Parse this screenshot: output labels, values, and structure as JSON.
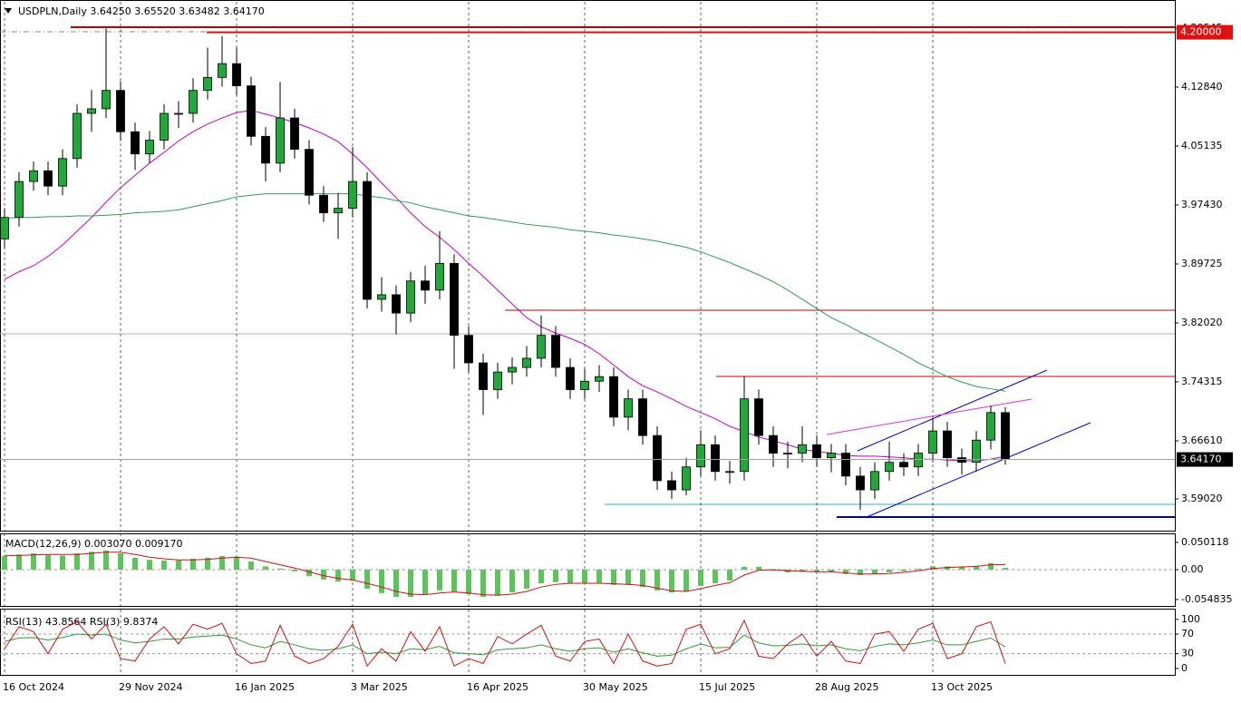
{
  "chart_data": [
    {
      "type": "candlestick",
      "title": "USDPLN,Daily  3.64250 3.65520 3.63482 3.64170",
      "categories": [
        "16 Oct 2024",
        null,
        null,
        null,
        null,
        null,
        null,
        null,
        "29 Nov 2024",
        null,
        null,
        null,
        null,
        null,
        null,
        null,
        "16 Jan 2025",
        null,
        null,
        null,
        null,
        null,
        null,
        null,
        "3 Mar 2025",
        null,
        null,
        null,
        null,
        null,
        null,
        null,
        "16 Apr 2025",
        null,
        null,
        null,
        null,
        null,
        null,
        null,
        "30 May 2025",
        null,
        null,
        null,
        null,
        null,
        null,
        null,
        "15 Jul 2025",
        null,
        null,
        null,
        null,
        null,
        null,
        null,
        "28 Aug 2025",
        null,
        null,
        null,
        null,
        null,
        null,
        null,
        "13 Oct 2025",
        null,
        null,
        null,
        null,
        null
      ],
      "open": [
        3.93,
        3.958,
        4.005,
        4.019,
        3.999,
        4.035,
        4.094,
        4.1,
        4.124,
        4.07,
        4.041,
        4.059,
        4.094,
        4.094,
        4.124,
        4.141,
        4.159,
        4.13,
        4.064,
        4.029,
        4.088,
        4.047,
        3.987,
        3.964,
        3.97,
        4.005,
        3.851,
        3.857,
        3.833,
        3.875,
        3.863,
        3.898,
        3.804,
        3.768,
        3.733,
        3.756,
        3.762,
        3.774,
        3.804,
        3.762,
        3.733,
        3.744,
        3.75,
        3.697,
        3.721,
        3.673,
        3.614,
        3.602,
        3.632,
        3.661,
        3.626,
        3.626,
        3.721,
        3.673,
        3.65,
        3.65,
        3.661,
        3.644,
        3.65,
        3.62,
        3.602,
        3.626,
        3.638,
        3.632,
        3.65,
        3.679,
        3.644,
        3.638,
        3.667,
        3.703
      ],
      "high": [
        3.97,
        4.017,
        4.031,
        4.031,
        4.047,
        4.106,
        4.125,
        4.205,
        4.136,
        4.082,
        4.071,
        4.106,
        4.11,
        4.14,
        4.18,
        4.195,
        4.18,
        4.142,
        4.076,
        4.135,
        4.1,
        4.059,
        3.999,
        3.99,
        4.05,
        4.017,
        3.88,
        3.869,
        3.887,
        3.895,
        3.94,
        3.91,
        3.816,
        3.78,
        3.768,
        3.775,
        3.79,
        3.83,
        3.816,
        3.774,
        3.76,
        3.765,
        3.762,
        3.733,
        3.733,
        3.685,
        3.626,
        3.644,
        3.68,
        3.673,
        3.64,
        3.75,
        3.733,
        3.685,
        3.665,
        3.685,
        3.673,
        3.662,
        3.662,
        3.632,
        3.638,
        3.665,
        3.65,
        3.662,
        3.695,
        3.691,
        3.656,
        3.679,
        3.712,
        3.71
      ],
      "low": [
        3.918,
        3.946,
        3.993,
        3.987,
        3.987,
        4.023,
        4.07,
        4.088,
        4.058,
        4.02,
        4.029,
        4.047,
        4.075,
        4.082,
        4.112,
        4.129,
        4.118,
        4.052,
        4.005,
        4.017,
        4.035,
        3.975,
        3.952,
        3.93,
        3.958,
        3.839,
        3.835,
        3.805,
        3.821,
        3.845,
        3.851,
        3.76,
        3.756,
        3.7,
        3.721,
        3.74,
        3.75,
        3.762,
        3.75,
        3.721,
        3.721,
        3.73,
        3.685,
        3.68,
        3.661,
        3.602,
        3.59,
        3.595,
        3.62,
        3.614,
        3.61,
        3.614,
        3.661,
        3.632,
        3.63,
        3.638,
        3.632,
        3.625,
        3.608,
        3.576,
        3.59,
        3.614,
        3.62,
        3.62,
        3.638,
        3.632,
        3.622,
        3.626,
        3.655,
        3.6348
      ],
      "close": [
        3.958,
        4.005,
        4.019,
        3.999,
        4.035,
        4.094,
        4.1,
        4.124,
        4.07,
        4.041,
        4.059,
        4.094,
        4.094,
        4.124,
        4.141,
        4.159,
        4.13,
        4.064,
        4.029,
        4.088,
        4.047,
        3.987,
        3.964,
        3.97,
        4.005,
        3.851,
        3.857,
        3.833,
        3.875,
        3.863,
        3.898,
        3.804,
        3.768,
        3.733,
        3.756,
        3.762,
        3.774,
        3.804,
        3.762,
        3.733,
        3.744,
        3.75,
        3.697,
        3.721,
        3.673,
        3.614,
        3.602,
        3.632,
        3.661,
        3.626,
        3.626,
        3.721,
        3.673,
        3.65,
        3.65,
        3.661,
        3.644,
        3.65,
        3.62,
        3.602,
        3.626,
        3.638,
        3.632,
        3.65,
        3.679,
        3.644,
        3.638,
        3.667,
        3.703,
        3.6417
      ],
      "up_color": "#22a83a",
      "down_color": "#000000",
      "lines": [
        {
          "color": "#c000c0",
          "values": [
            3.877,
            3.887,
            3.895,
            3.907,
            3.922,
            3.94,
            3.958,
            3.978,
            3.997,
            4.013,
            4.029,
            4.043,
            4.058,
            4.07,
            4.08,
            4.088,
            4.095,
            4.098,
            4.093,
            4.088,
            4.082,
            4.075,
            4.067,
            4.057,
            4.041,
            4.023,
            4.003,
            3.984,
            3.964,
            3.946,
            3.932,
            3.916,
            3.898,
            3.881,
            3.863,
            3.845,
            3.827,
            3.815,
            3.807,
            3.8,
            3.792,
            3.78,
            3.765,
            3.75,
            3.738,
            3.73,
            3.721,
            3.711,
            3.703,
            3.695,
            3.685,
            3.678,
            3.671,
            3.666,
            3.661,
            3.655,
            3.652,
            3.65,
            3.647,
            3.646,
            3.646,
            3.645,
            3.644,
            3.642,
            3.642,
            3.641,
            3.64,
            3.64,
            3.642,
            3.646
          ]
        },
        {
          "color": "#2e9a5a",
          "values": [
            3.957,
            3.958,
            3.958,
            3.959,
            3.959,
            3.96,
            3.96,
            3.961,
            3.962,
            3.964,
            3.965,
            3.966,
            3.968,
            3.972,
            3.976,
            3.98,
            3.985,
            3.987,
            3.989,
            3.989,
            3.989,
            3.989,
            3.989,
            3.989,
            3.989,
            3.986,
            3.984,
            3.98,
            3.977,
            3.972,
            3.968,
            3.964,
            3.96,
            3.958,
            3.955,
            3.952,
            3.949,
            3.947,
            3.945,
            3.942,
            3.94,
            3.938,
            3.935,
            3.933,
            3.93,
            3.927,
            3.923,
            3.919,
            3.913,
            3.906,
            3.899,
            3.891,
            3.883,
            3.874,
            3.863,
            3.851,
            3.839,
            3.827,
            3.818,
            3.808,
            3.799,
            3.789,
            3.779,
            3.768,
            3.759,
            3.75,
            3.743,
            3.737,
            3.734,
            3.731
          ]
        }
      ],
      "ylim": [
        3.5487,
        4.2398
      ],
      "yticks": [
        4.20545,
        {
          "value": 4.1284,
          "label": "4.12840"
        },
        4.05135,
        {
          "value": 3.9743,
          "label": "3.97430"
        },
        3.89725,
        {
          "value": 3.8202,
          "label": "3.82020"
        },
        3.74315,
        {
          "value": 3.6661,
          "label": "3.66610"
        },
        {
          "value": 3.5902,
          "label": "3.59020"
        }
      ],
      "levels": [
        {
          "value": 4.2,
          "label": "4.20000",
          "color": "#dd1111"
        }
      ],
      "current": {
        "value": 3.6417,
        "label": "3.64170",
        "color": "#000000"
      },
      "grid": true
    },
    {
      "type": "macd",
      "title": "MACD(12,26,9) 0.003070 0.009170",
      "bars": {
        "color": "#5ec25e",
        "values": [
          0.025,
          0.028,
          0.03,
          0.027,
          0.026,
          0.03,
          0.033,
          0.035,
          0.03,
          0.022,
          0.018,
          0.017,
          0.017,
          0.02,
          0.022,
          0.025,
          0.024,
          0.015,
          0.006,
          0.002,
          -0.003,
          -0.012,
          -0.018,
          -0.022,
          -0.02,
          -0.035,
          -0.043,
          -0.05,
          -0.05,
          -0.045,
          -0.038,
          -0.04,
          -0.045,
          -0.05,
          -0.048,
          -0.042,
          -0.035,
          -0.025,
          -0.023,
          -0.025,
          -0.025,
          -0.024,
          -0.028,
          -0.028,
          -0.032,
          -0.038,
          -0.042,
          -0.04,
          -0.03,
          -0.025,
          -0.02,
          0.005,
          0.005,
          -0.002,
          -0.005,
          -0.004,
          -0.004,
          -0.005,
          -0.008,
          -0.01,
          -0.008,
          -0.005,
          -0.003,
          0.002,
          0.006,
          0.006,
          0.005,
          0.007,
          0.012,
          0.00307
        ]
      },
      "lines": [
        {
          "color": "#d01010",
          "values": [
            0.026,
            0.026,
            0.027,
            0.028,
            0.028,
            0.028,
            0.03,
            0.032,
            0.032,
            0.028,
            0.023,
            0.02,
            0.018,
            0.018,
            0.019,
            0.021,
            0.023,
            0.021,
            0.015,
            0.009,
            0.003,
            -0.004,
            -0.011,
            -0.016,
            -0.019,
            -0.025,
            -0.032,
            -0.04,
            -0.045,
            -0.046,
            -0.043,
            -0.041,
            -0.043,
            -0.046,
            -0.047,
            -0.045,
            -0.04,
            -0.032,
            -0.027,
            -0.025,
            -0.025,
            -0.025,
            -0.026,
            -0.027,
            -0.029,
            -0.034,
            -0.039,
            -0.04,
            -0.035,
            -0.029,
            -0.024,
            -0.01,
            -0.001,
            0.0,
            -0.002,
            -0.003,
            -0.004,
            -0.004,
            -0.006,
            -0.008,
            -0.008,
            -0.007,
            -0.005,
            -0.002,
            0.002,
            0.004,
            0.005,
            0.006,
            0.009,
            0.00917
          ]
        }
      ],
      "ylim": [
        -0.0667,
        0.0667
      ],
      "yticks": [
        0.050118,
        {
          "value": 0,
          "label": "0.00"
        },
        -0.054835
      ],
      "levels": [
        0
      ]
    },
    {
      "type": "line",
      "title": "RSI(13) 43.8564  RSI(3) 9.8374",
      "lines": [
        {
          "color": "#2e9a3a",
          "values": [
            55,
            62,
            63,
            58,
            63,
            70,
            68,
            70,
            58,
            52,
            55,
            60,
            60,
            64,
            66,
            68,
            60,
            48,
            42,
            55,
            48,
            40,
            37,
            40,
            48,
            30,
            33,
            30,
            40,
            38,
            45,
            32,
            30,
            28,
            38,
            40,
            42,
            48,
            40,
            35,
            40,
            42,
            33,
            40,
            32,
            25,
            27,
            40,
            50,
            42,
            43,
            68,
            52,
            46,
            47,
            50,
            46,
            48,
            40,
            36,
            45,
            50,
            48,
            52,
            58,
            48,
            48,
            55,
            62,
            43.8564
          ]
        },
        {
          "color": "#d01010",
          "values": [
            40,
            85,
            75,
            30,
            80,
            95,
            60,
            90,
            20,
            15,
            60,
            85,
            50,
            90,
            80,
            92,
            30,
            10,
            15,
            88,
            25,
            10,
            20,
            45,
            90,
            5,
            40,
            15,
            75,
            35,
            85,
            5,
            20,
            10,
            65,
            50,
            70,
            88,
            25,
            15,
            55,
            60,
            10,
            70,
            15,
            5,
            10,
            80,
            90,
            30,
            40,
            98,
            25,
            20,
            50,
            70,
            25,
            55,
            15,
            10,
            70,
            75,
            35,
            80,
            92,
            20,
            30,
            85,
            95,
            9.8374
          ]
        }
      ],
      "ylim": [
        -15,
        120
      ],
      "yticks": [
        100,
        70,
        30,
        0
      ],
      "levels": [
        70,
        30
      ]
    }
  ]
}
